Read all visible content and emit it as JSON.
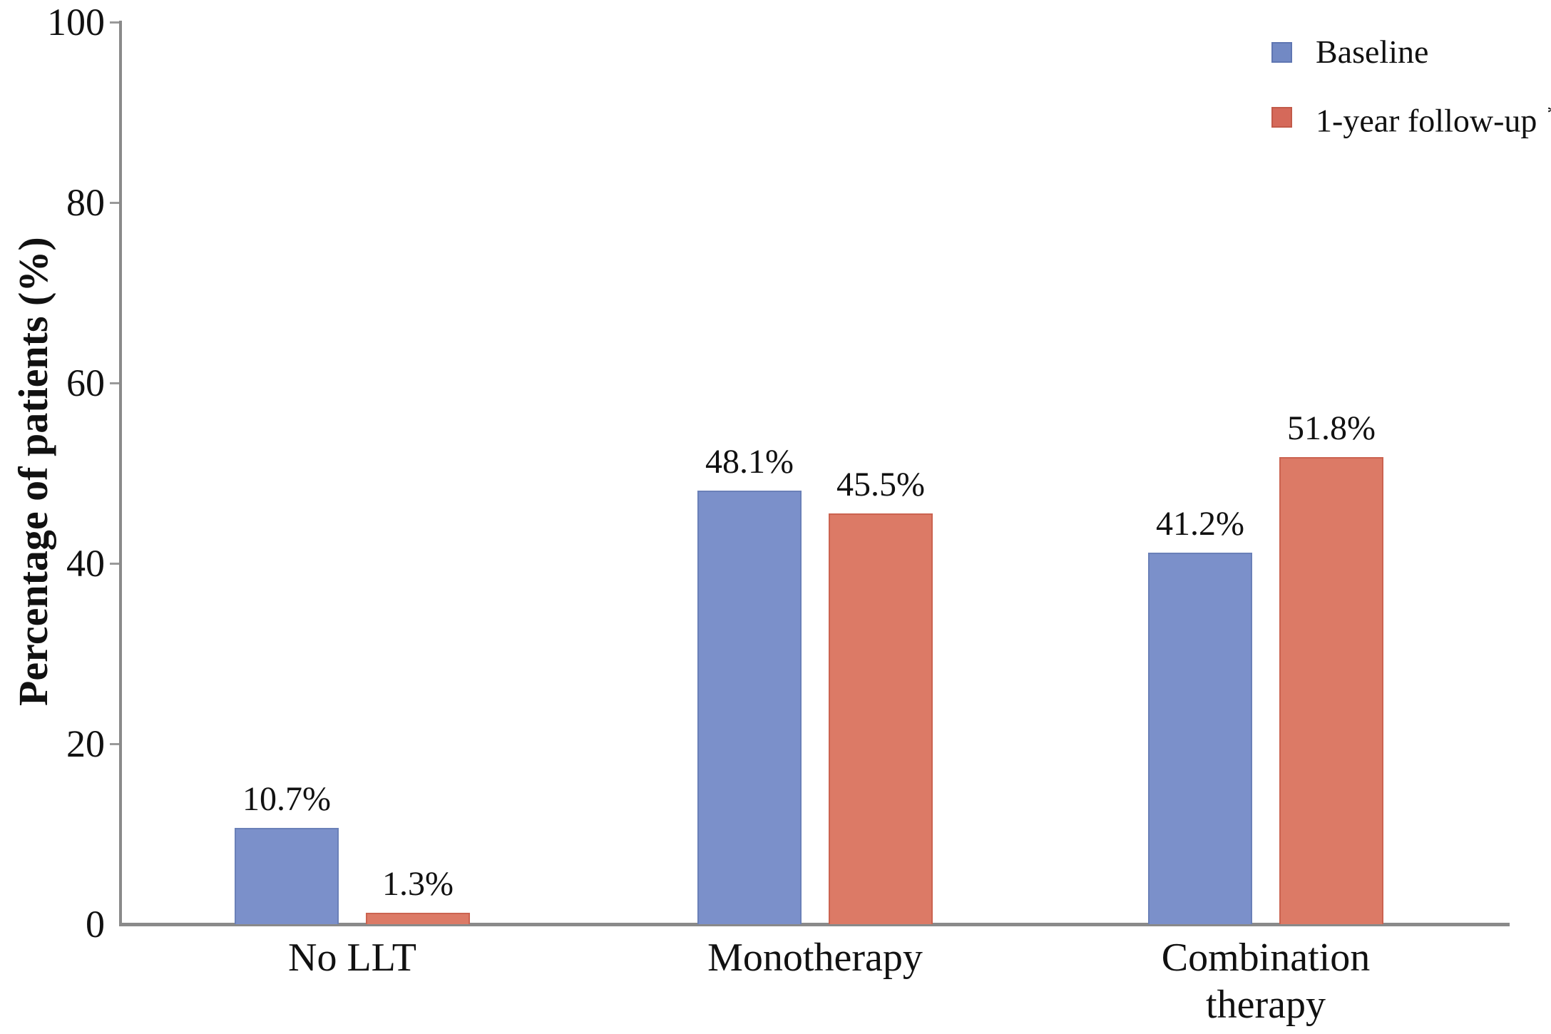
{
  "chart_data": {
    "type": "bar",
    "title": "",
    "categories": [
      "No LLT",
      "Monotherapy",
      "Combination therapy"
    ],
    "series": [
      {
        "name": "Baseline",
        "values": [
          10.7,
          48.1,
          41.2
        ],
        "value_labels": [
          "10.7%",
          "48.1%",
          "41.2%"
        ],
        "fill": "#7b90ca",
        "border": "#6a80b8"
      },
      {
        "name": "1-year follow-up",
        "values": [
          1.3,
          45.5,
          51.8
        ],
        "value_labels": [
          "1.3%",
          "45.5%",
          "51.8%"
        ],
        "fill": "#dc7a66",
        "border": "#cb6350"
      }
    ],
    "xlabel": "",
    "ylabel": "Percentage of patients (%)",
    "yticks": [
      "0",
      "20",
      "40",
      "60",
      "80",
      "100"
    ],
    "ylim": [
      0,
      100
    ],
    "grid": false,
    "legend_position": "top-right",
    "axis_color": "#8a8a8a",
    "text_color": "#111111"
  },
  "legend": {
    "items": [
      {
        "label": "Baseline",
        "marker": "",
        "swatch_color": "#7289c4",
        "swatch_border": "#5f76b2"
      },
      {
        "label": "1-year follow-up",
        "marker": "*",
        "swatch_color": "#d5695a",
        "swatch_border": "#c25a49"
      }
    ]
  }
}
